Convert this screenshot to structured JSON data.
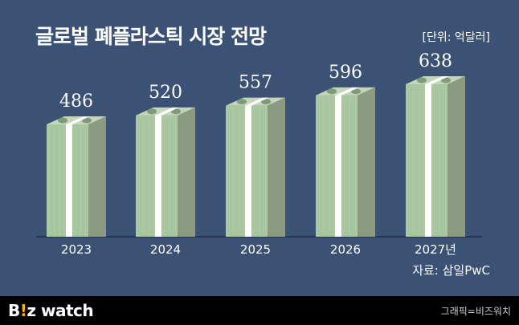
{
  "header": {
    "title": "글로벌 폐플라스틱 시장 전망",
    "unit": "[단위: 억달러]"
  },
  "source": "자료: 삼일PwC",
  "footer": {
    "logo_b": "B",
    "logo_dot": "!",
    "logo_rest": "z watch",
    "credit": "그래픽=비즈워치"
  },
  "colors": {
    "background": "#3b5274",
    "bar_front": "#a9c8a2",
    "bar_side": "#8c9a82",
    "bar_top": "#c4d6b8",
    "band": "#ffffff",
    "label": "#ffffff"
  },
  "icons": {
    "bill_stack": "money-stack-icon"
  },
  "chart_data": {
    "type": "bar",
    "categories": [
      "2023",
      "2024",
      "2025",
      "2026",
      "2027년"
    ],
    "values": [
      486,
      520,
      557,
      596,
      638
    ]
  }
}
